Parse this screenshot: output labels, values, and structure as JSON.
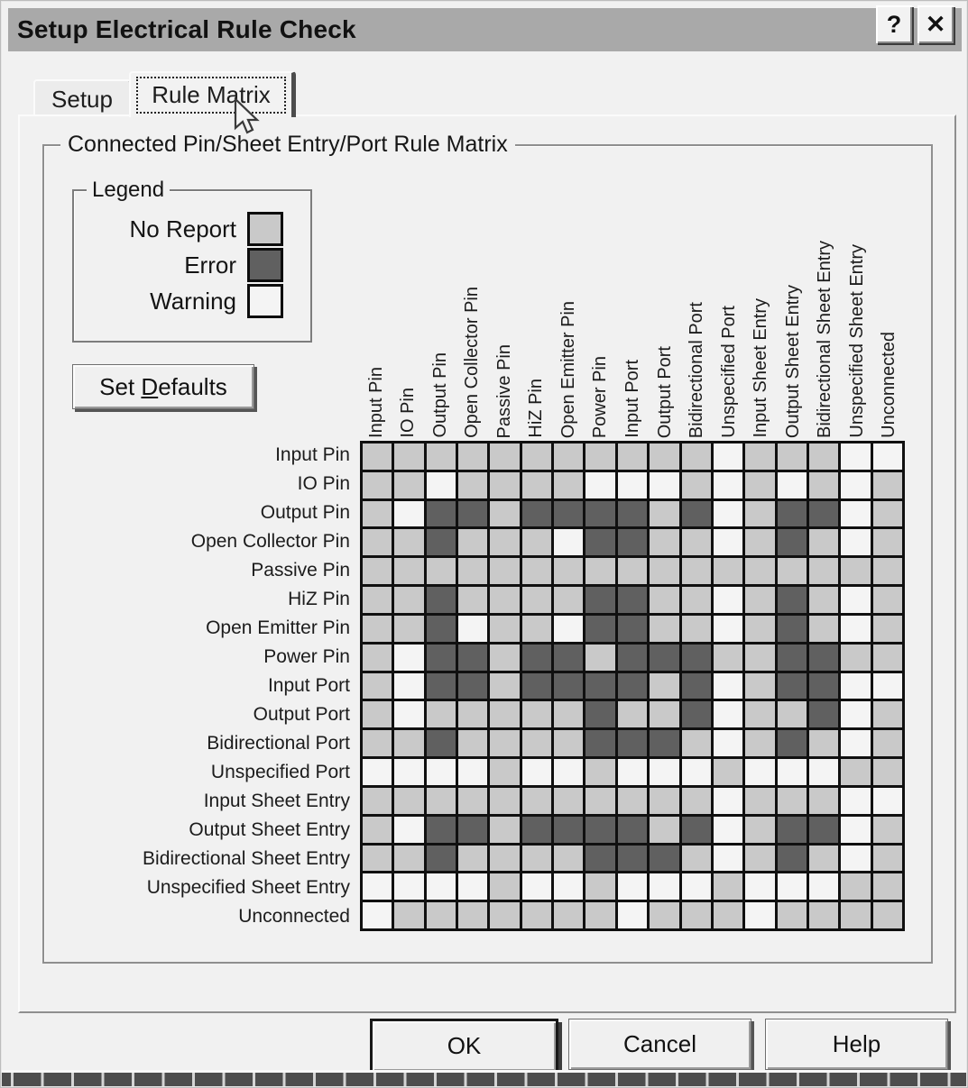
{
  "window": {
    "title": "Setup Electrical Rule Check",
    "help_icon": "?",
    "close_icon": "✕"
  },
  "tabs": [
    {
      "label": "Setup",
      "active": false
    },
    {
      "label": "Rule Matrix",
      "active": true
    }
  ],
  "group_title": "Connected Pin/Sheet Entry/Port Rule Matrix",
  "legend": {
    "title": "Legend",
    "items": [
      {
        "label": "No Report",
        "code": "G",
        "color": "#c9c9c9"
      },
      {
        "label": "Error",
        "code": "E",
        "color": "#606060"
      },
      {
        "label": "Warning",
        "code": "W",
        "color": "#f4f4f4"
      }
    ]
  },
  "set_defaults": {
    "pre": "Set ",
    "accel": "D",
    "post": "efaults"
  },
  "chart_data": {
    "type": "heatmap",
    "title": "Connected Pin/Sheet Entry/Port Rule Matrix",
    "legend_entries": [
      "No Report",
      "Error",
      "Warning"
    ],
    "cell_codes": {
      "G": "No Report",
      "E": "Error",
      "W": "Warning"
    },
    "categories": [
      "Input Pin",
      "IO Pin",
      "Output Pin",
      "Open Collector Pin",
      "Passive Pin",
      "HiZ Pin",
      "Open Emitter Pin",
      "Power Pin",
      "Input Port",
      "Output Port",
      "Bidirectional Port",
      "Unspecified Port",
      "Input Sheet Entry",
      "Output Sheet Entry",
      "Bidirectional Sheet Entry",
      "Unspecified Sheet Entry",
      "Unconnected"
    ],
    "rows": [
      "GGGGGGGGGGGWGGGWW",
      "GGWGGGGWWWGWGWGWG",
      "GWEEGEEEEGEWGEEWG",
      "GGEGGGWEEGGWGEGWG",
      "GGGGGGGGGGGGGGGGG",
      "GGEGGGGEEGGWGEGWG",
      "GGEWGGWEEGGWGEGWG",
      "GWEEGEEGEEEGGEEGG",
      "GWEEGEEEEGEWGEEWW",
      "GWGGGGGEGGEWGGEWG",
      "GGEGGGGEEEGWGEGWG",
      "WWWWGWWGWWWGWWWGG",
      "GGGGGGGGGGGWGGGWW",
      "GWEEGEEEEGEWGEEWG",
      "GGEGGGGEEEGWGEGWG",
      "WWWWGWWGWWWGWWWGG",
      "WGGGGGGGWGGGWGGGG"
    ]
  },
  "buttons": [
    {
      "label": "OK"
    },
    {
      "label": "Cancel"
    },
    {
      "label": "Help"
    }
  ]
}
